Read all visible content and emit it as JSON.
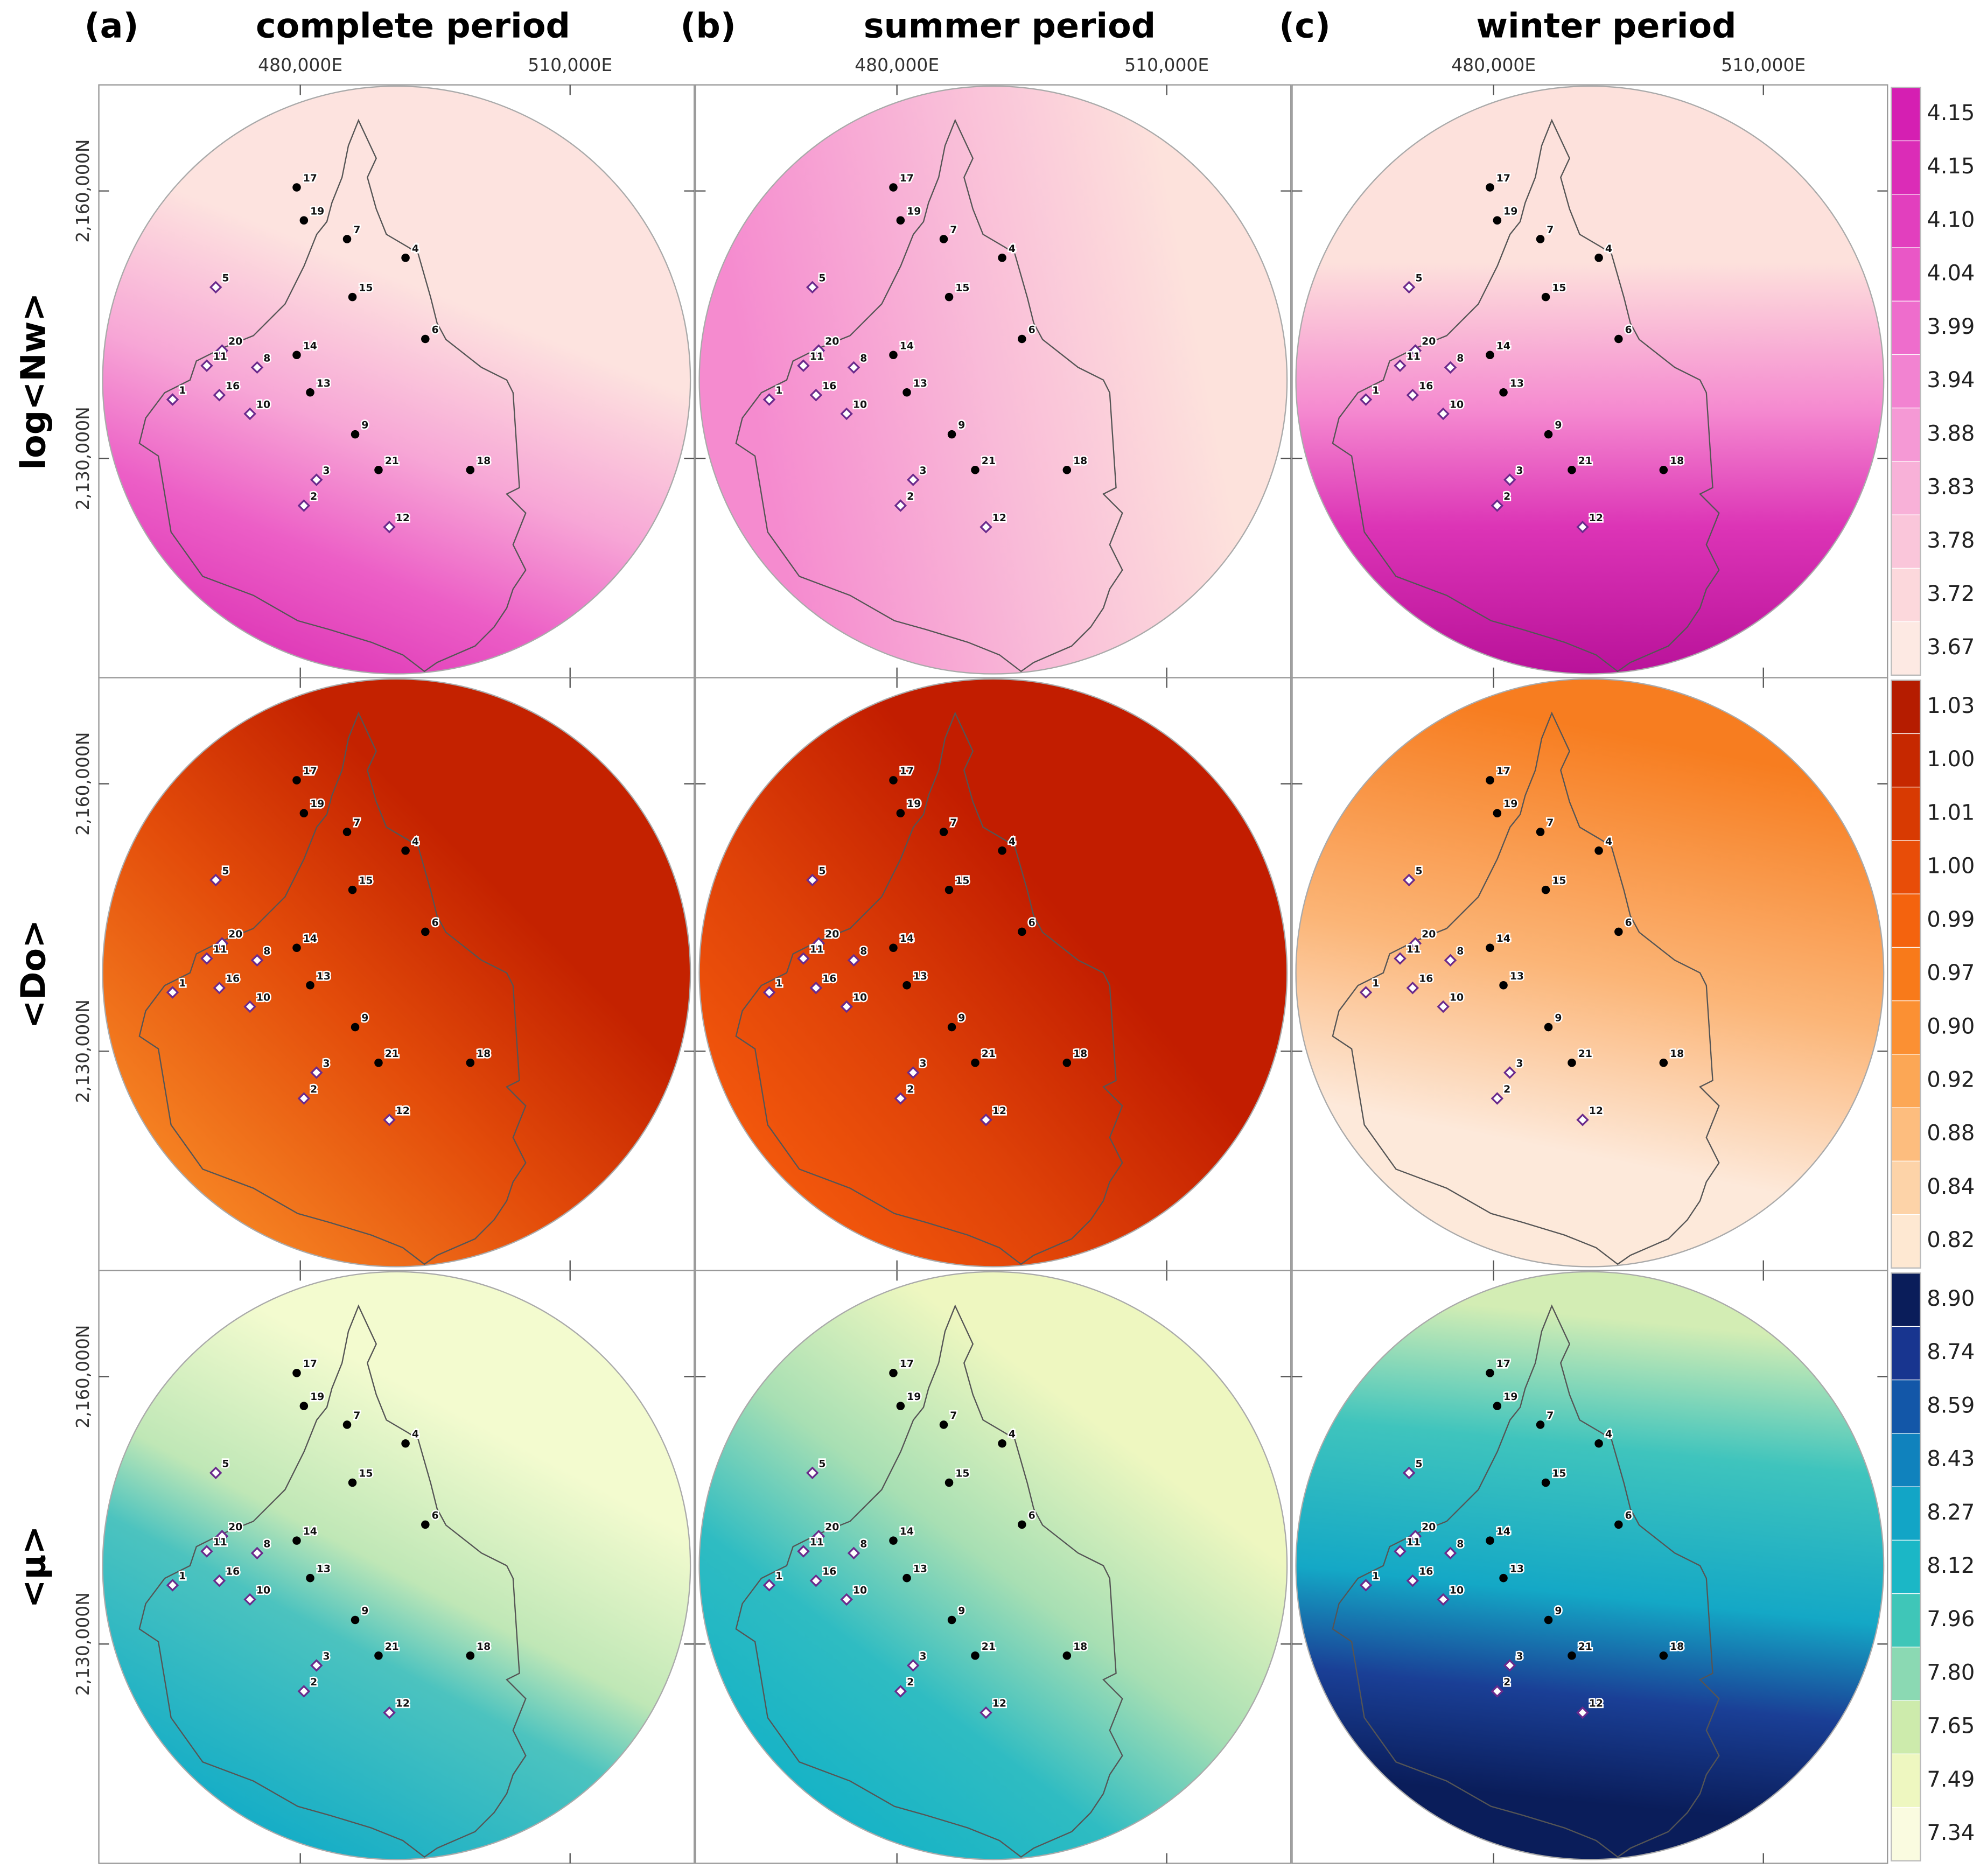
{
  "columns": [
    {
      "tag": "(a)",
      "title": "complete period"
    },
    {
      "tag": "(b)",
      "title": "summer period"
    },
    {
      "tag": "(c)",
      "title": "winter period"
    }
  ],
  "map": {
    "xlim": [
      457600,
      523800
    ],
    "ylim": [
      2105400,
      2171900
    ],
    "xticks": [
      {
        "value": 480000,
        "label": "480,000E"
      },
      {
        "value": 510000,
        "label": "510,000E"
      }
    ],
    "yticks": [
      {
        "value": 2160000,
        "label": "2,160,000N"
      },
      {
        "value": 2130000,
        "label": "2,130,000N"
      }
    ]
  },
  "stations": [
    {
      "label": "17",
      "x": 479600,
      "y": 2160400,
      "kind": "dot"
    },
    {
      "label": "19",
      "x": 480400,
      "y": 2156700,
      "kind": "dot"
    },
    {
      "label": "7",
      "x": 485200,
      "y": 2154600,
      "kind": "dot"
    },
    {
      "label": "4",
      "x": 491700,
      "y": 2152500,
      "kind": "dot"
    },
    {
      "label": "5",
      "x": 470600,
      "y": 2149200,
      "kind": "diamond"
    },
    {
      "label": "15",
      "x": 485800,
      "y": 2148100,
      "kind": "dot"
    },
    {
      "label": "6",
      "x": 493900,
      "y": 2143400,
      "kind": "dot"
    },
    {
      "label": "20",
      "x": 471300,
      "y": 2142100,
      "kind": "diamond"
    },
    {
      "label": "14",
      "x": 479600,
      "y": 2141600,
      "kind": "dot"
    },
    {
      "label": "11",
      "x": 469600,
      "y": 2140400,
      "kind": "diamond"
    },
    {
      "label": "8",
      "x": 475200,
      "y": 2140200,
      "kind": "diamond"
    },
    {
      "label": "16",
      "x": 471000,
      "y": 2137100,
      "kind": "diamond"
    },
    {
      "label": "1",
      "x": 465800,
      "y": 2136600,
      "kind": "diamond"
    },
    {
      "label": "13",
      "x": 481100,
      "y": 2137400,
      "kind": "dot"
    },
    {
      "label": "10",
      "x": 474400,
      "y": 2135000,
      "kind": "diamond"
    },
    {
      "label": "9",
      "x": 486100,
      "y": 2132700,
      "kind": "dot"
    },
    {
      "label": "21",
      "x": 488700,
      "y": 2128700,
      "kind": "dot"
    },
    {
      "label": "18",
      "x": 498900,
      "y": 2128700,
      "kind": "dot"
    },
    {
      "label": "3",
      "x": 481800,
      "y": 2127600,
      "kind": "diamond"
    },
    {
      "label": "2",
      "x": 480400,
      "y": 2124700,
      "kind": "diamond"
    },
    {
      "label": "12",
      "x": 489900,
      "y": 2122300,
      "kind": "diamond"
    }
  ],
  "rows": [
    {
      "label": "log<Nw>",
      "colorbar": {
        "colors": [
          "#d51fb2",
          "#db2cb7",
          "#e23fbe",
          "#e957c6",
          "#ee6dcc",
          "#f283d1",
          "#f599d5",
          "#f8b1d8",
          "#fac6da",
          "#fcd8dc",
          "#fde9e3"
        ],
        "levels": [
          4.15,
          4.15,
          {
            "value": 4.1,
            "label": "4.10"
          },
          4.04,
          3.99,
          3.94,
          3.88,
          3.83,
          3.78,
          3.72,
          3.67
        ]
      }
    },
    {
      "label": "<Do>",
      "colorbar": {
        "colors": [
          "#b51c00",
          "#c62800",
          "#d83a02",
          "#e84d08",
          "#f4630e",
          "#f87a1a",
          "#fb9033",
          "#fca755",
          "#fdbd7e",
          "#fdd3a8",
          "#fee8d2"
        ],
        "levels": [
          1.03,
          {
            "value": 1,
            "label": "1.00"
          },
          1.01,
          {
            "value": 1,
            "label": "1.00"
          },
          0.99,
          0.97,
          {
            "value": 0.9,
            "label": "0.90"
          },
          0.92,
          0.88,
          0.84,
          0.82
        ]
      }
    },
    {
      "label": "<μ>",
      "colorbar": {
        "colors": [
          "#0a1d5a",
          "#18358f",
          "#1357a8",
          "#1082bd",
          "#12a5c6",
          "#1bb7c6",
          "#3fc6b8",
          "#8bd9b3",
          "#cdebac",
          "#eef7c0",
          "#fafbe0"
        ],
        "levels": [
          {
            "value": 8.9,
            "label": "8.90"
          },
          8.74,
          8.59,
          8.43,
          8.27,
          8.12,
          7.96,
          {
            "value": 7.8,
            "label": "7.80"
          },
          7.65,
          7.49,
          7.34
        ]
      }
    }
  ]
}
